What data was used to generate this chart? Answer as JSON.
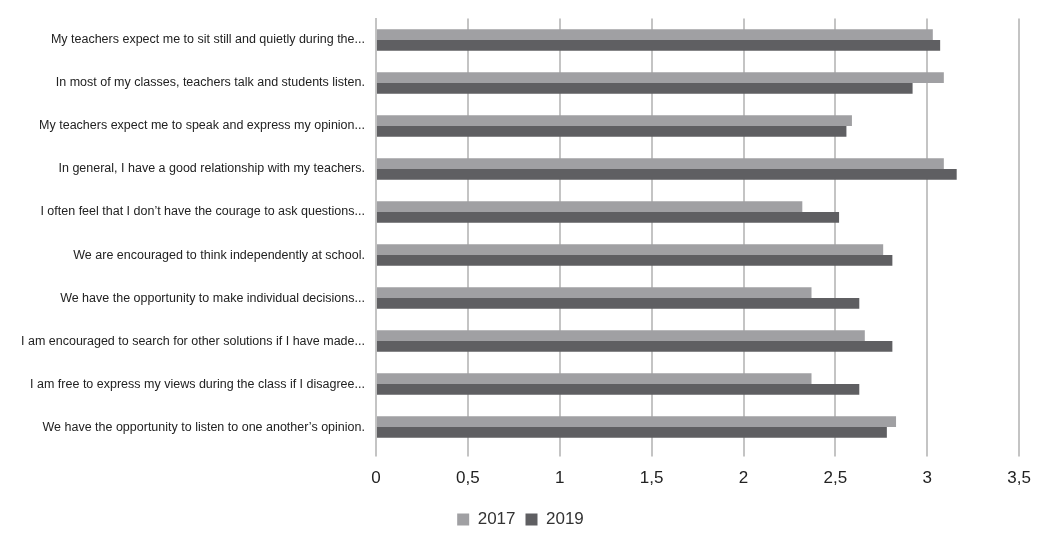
{
  "chart_data": {
    "type": "bar",
    "orientation": "horizontal",
    "categories": [
      "My teachers expect me to sit still and quietly during the...",
      "In most of my classes, teachers talk and students listen.",
      "My teachers expect me to speak and express my opinion...",
      "In general, I have a good relationship with my teachers.",
      "I often feel that I don’t have the courage to ask questions...",
      "We are encouraged to think independently at school.",
      "We have the opportunity to make individual decisions...",
      "I am encouraged to search for other solutions if I have made...",
      "I am free to express my views during the class if I disagree...",
      "We have the opportunity to listen to one another’s opinion."
    ],
    "series": [
      {
        "name": "2017",
        "color": "#a0a0a3",
        "values": [
          3.03,
          3.09,
          2.59,
          3.09,
          2.32,
          2.76,
          2.37,
          2.66,
          2.37,
          2.83
        ]
      },
      {
        "name": "2019",
        "color": "#5f5f62",
        "values": [
          3.07,
          2.92,
          2.56,
          3.16,
          2.52,
          2.81,
          2.63,
          2.81,
          2.63,
          2.78
        ]
      }
    ],
    "xlim": [
      0,
      3.5
    ],
    "xticks": [
      0,
      {
        "value": 0.5,
        "label": "0,5"
      },
      1,
      {
        "value": 1.5,
        "label": "1,5"
      },
      2,
      {
        "value": 2.5,
        "label": "2,5"
      },
      3,
      {
        "value": 3.5,
        "label": "3,5"
      }
    ],
    "grid": "x",
    "legend": "bottom"
  }
}
